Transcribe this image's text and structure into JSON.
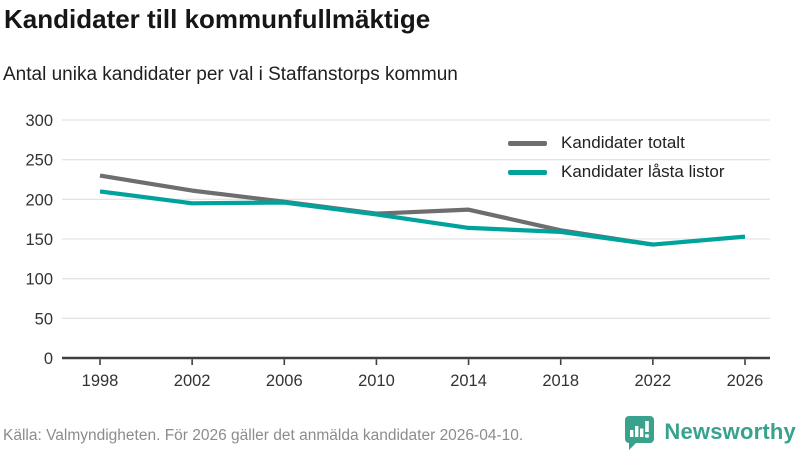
{
  "header": {
    "title": "Kandidater till kommunfullmäktige",
    "subtitle": "Antal unika kandidater per val i Staffanstorps kommun"
  },
  "chart_data": {
    "type": "line",
    "title": "Kandidater till kommunfullmäktige",
    "subtitle": "Antal unika kandidater per val i Staffanstorps kommun",
    "xlabel": "",
    "ylabel": "",
    "ylim": [
      0,
      300
    ],
    "y_ticks": [
      0,
      50,
      100,
      150,
      200,
      250,
      300
    ],
    "x_ticks": [
      1998,
      2002,
      2006,
      2010,
      2014,
      2018,
      2022,
      2026
    ],
    "grid": "horizontal",
    "legend_position": "top-right",
    "series": [
      {
        "name": "Kandidater totalt",
        "color": "#6e6e6e",
        "x": [
          1998,
          2002,
          2006,
          2010,
          2014,
          2018,
          2022
        ],
        "values": [
          230,
          211,
          197,
          182,
          187,
          161,
          143
        ]
      },
      {
        "name": "Kandidater låsta listor",
        "color": "#00a39b",
        "x": [
          1998,
          2002,
          2006,
          2010,
          2014,
          2018,
          2022,
          2026
        ],
        "values": [
          210,
          195,
          196,
          181,
          164,
          159,
          143,
          153
        ]
      }
    ]
  },
  "footer": {
    "source": "Källa: Valmyndigheten. För 2026 gäller det anmälda kandidater 2026-04-10.",
    "brand": "Newsworthy"
  },
  "colors": {
    "gridline": "#e4e4e4",
    "axis": "#3f3f3f",
    "tick_label": "#333333",
    "logo": "#38a28d"
  }
}
